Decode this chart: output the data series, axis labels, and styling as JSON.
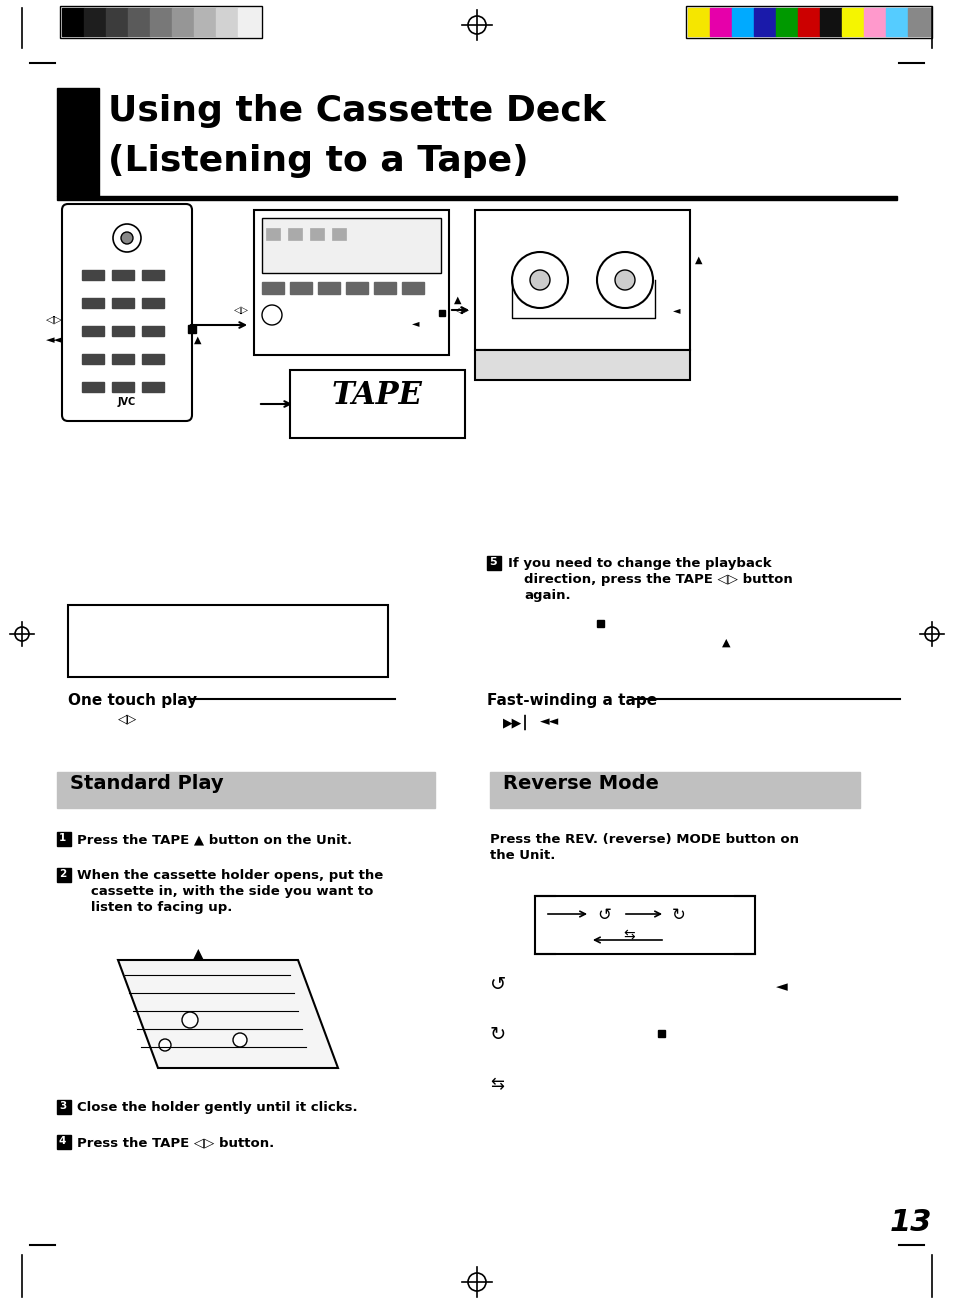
{
  "bg_color": "#ffffff",
  "page_number": "13",
  "title_line1": "Using the Cassette Deck",
  "title_line2": "(Listening to a Tape)",
  "section1_title": "Standard Play",
  "section2_title": "Reverse Mode",
  "section_bg": "#c0c0c0",
  "color_bars": [
    "#f5e600",
    "#e600e6",
    "#00aaff",
    "#1a1aaa",
    "#009900",
    "#cc0000",
    "#111111",
    "#f5f500",
    "#ffaacc",
    "#55ccff",
    "#888888"
  ],
  "gray_bars": [
    "#000000",
    "#1e1e1e",
    "#3c3c3c",
    "#5a5a5a",
    "#787878",
    "#969696",
    "#b4b4b4",
    "#d2d2d2",
    "#f0f0f0"
  ],
  "step5_line1": "5  If you need to change the playback",
  "step5_line2": "   direction, press the TAPE ◁▷ button",
  "step5_line3": "   again.",
  "one_touch": "One touch play",
  "fast_winding": "Fast-winding a tape",
  "rev_text1": "Press the REV. (reverse) MODE button on",
  "rev_text2": "the Unit.",
  "s1": "Press the TAPE ▲ button on the Unit.",
  "s2a": "When the cassette holder opens, put the",
  "s2b": "   cassette in, with the side you want to",
  "s2c": "   listen to facing up.",
  "s3": "Close the holder gently until it clicks.",
  "s4": "Press the TAPE ◁▷ button."
}
